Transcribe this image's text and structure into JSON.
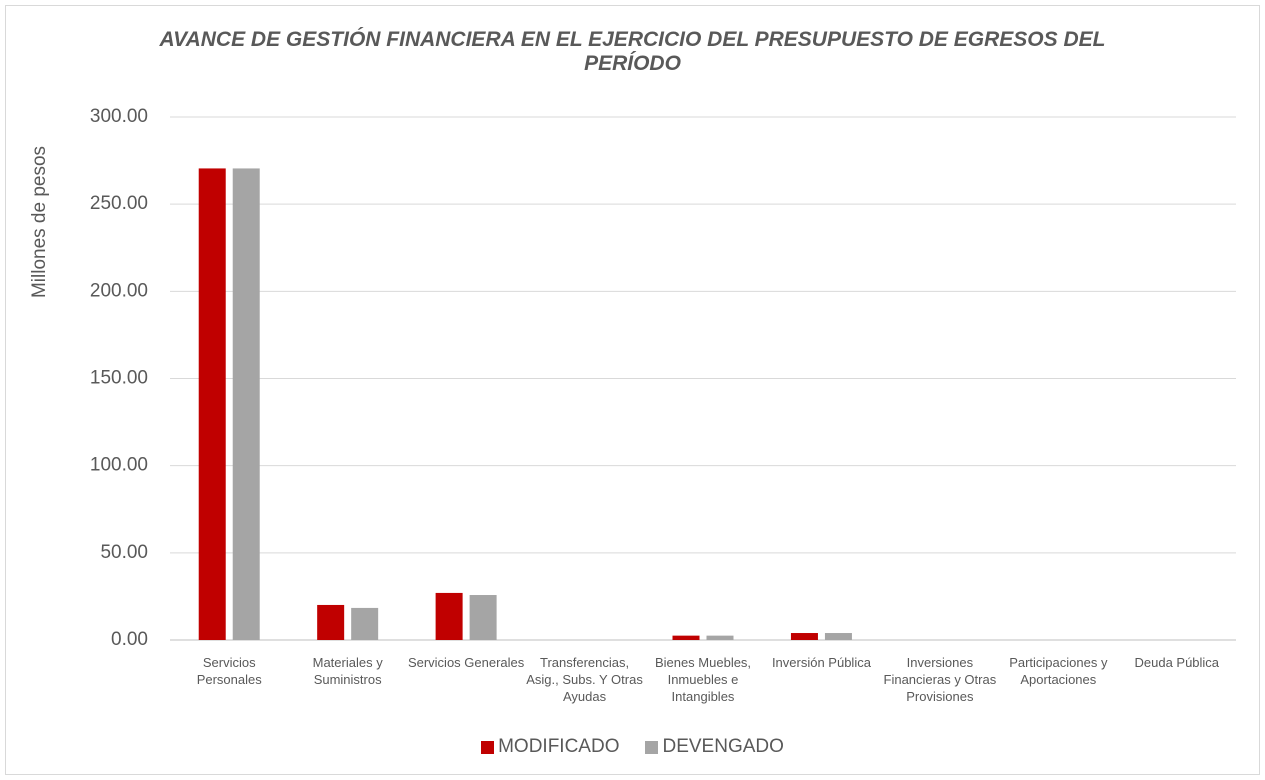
{
  "chart_data": {
    "type": "bar",
    "title": "AVANCE DE GESTIÓN FINANCIERA EN EL EJERCICIO DEL PRESUPUESTO DE EGRESOS DEL PERÍODO",
    "y_label": "Millones de pesos",
    "categories": [
      "Servicios Personales",
      "Materiales  y Suministros",
      "Servicios Generales",
      "Transferencias, Asig., Subs. Y Otras Ayudas",
      "Bienes Muebles, Inmuebles e Intangibles",
      "Inversión Pública",
      "Inversiones Financieras y Otras Provisiones",
      "Participaciones y Aportaciones",
      "Deuda  Pública"
    ],
    "series": [
      {
        "name": "MODIFICADO",
        "color": "#c00000",
        "values": [
          270.5,
          20.1,
          27.0,
          0,
          2.5,
          4.0,
          0,
          0,
          0
        ]
      },
      {
        "name": "DEVENGADO",
        "color": "#a5a5a5",
        "values": [
          270.5,
          18.4,
          25.8,
          0,
          2.5,
          4.0,
          0,
          0,
          0
        ]
      }
    ],
    "ylim": [
      0,
      300
    ],
    "yticks": [
      {
        "value": 0,
        "label": "0.00"
      },
      {
        "value": 50,
        "label": "50.00"
      },
      {
        "value": 100,
        "label": "100.00"
      },
      {
        "value": 150,
        "label": "150.00"
      },
      {
        "value": 200,
        "label": "200.00"
      },
      {
        "value": 250,
        "label": "250.00"
      },
      {
        "value": 300,
        "label": "300.00"
      }
    ],
    "grid": true,
    "legend": "bottom"
  }
}
